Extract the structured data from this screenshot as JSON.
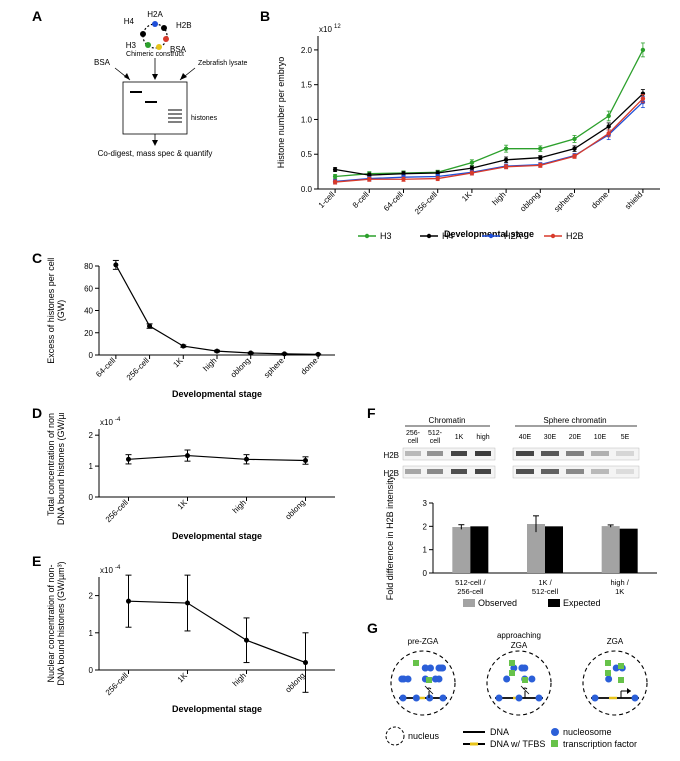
{
  "panelA": {
    "label": "A",
    "title_top_parts": [
      "H2A",
      "H4",
      "H2B",
      "H3",
      "BSA"
    ],
    "colors": {
      "H2A": "#1f4fd8",
      "H4": "#000000",
      "H2B": "#d83a2b",
      "H3": "#2ca02c",
      "BSA": "#e8c41a"
    },
    "top_label": "Chimeric construct",
    "arrow_labels": [
      "BSA",
      "Chimeric construct",
      "Zebrafish lysate"
    ],
    "bottom_label": "Co-digest, mass spec & quantify",
    "histones_label": "histones"
  },
  "panelB": {
    "label": "B",
    "ylabel": "Histone number per embryo",
    "yexp": "x10",
    "yexp_sup": "12",
    "xlabel": "Developmental stage",
    "xticks": [
      "1-cell",
      "8-cell",
      "64-cell",
      "256-cell",
      "1K",
      "high",
      "oblong",
      "sphere",
      "dome",
      "shield"
    ],
    "ylim": [
      0,
      2.2
    ],
    "yticks": [
      0,
      0.5,
      1.0,
      1.5,
      2.0
    ],
    "series": {
      "H3": {
        "color": "#2ca02c",
        "values": [
          0.18,
          0.22,
          0.23,
          0.24,
          0.38,
          0.58,
          0.58,
          0.72,
          1.05,
          2.0
        ],
        "err": [
          0.03,
          0.03,
          0.03,
          0.03,
          0.04,
          0.05,
          0.04,
          0.05,
          0.07,
          0.1
        ]
      },
      "H4": {
        "color": "#000000",
        "values": [
          0.28,
          0.2,
          0.22,
          0.23,
          0.3,
          0.42,
          0.45,
          0.58,
          0.9,
          1.37
        ],
        "err": [
          0.03,
          0.03,
          0.03,
          0.03,
          0.03,
          0.04,
          0.03,
          0.04,
          0.05,
          0.06
        ]
      },
      "H2A": {
        "color": "#1f4fd8",
        "values": [
          0.11,
          0.15,
          0.17,
          0.18,
          0.24,
          0.33,
          0.35,
          0.48,
          0.78,
          1.25
        ],
        "err": [
          0.03,
          0.03,
          0.03,
          0.03,
          0.03,
          0.03,
          0.03,
          0.03,
          0.07,
          0.08
        ]
      },
      "H2B": {
        "color": "#d83a2b",
        "values": [
          0.1,
          0.14,
          0.14,
          0.15,
          0.23,
          0.32,
          0.34,
          0.47,
          0.8,
          1.3
        ],
        "err": [
          0.03,
          0.03,
          0.03,
          0.03,
          0.03,
          0.03,
          0.03,
          0.03,
          0.05,
          0.06
        ]
      }
    },
    "legend": [
      "H3",
      "H4",
      "H2A",
      "H2B"
    ]
  },
  "panelC": {
    "label": "C",
    "ylabel": "Excess of histones per cell (GW)",
    "xlabel": "Developmental stage",
    "xticks": [
      "64-cell",
      "256-cell",
      "1K",
      "high",
      "oblong",
      "sphere",
      "dome"
    ],
    "ylim": [
      0,
      80
    ],
    "yticks": [
      0,
      20,
      40,
      60,
      80
    ],
    "values": [
      81,
      26,
      8,
      3.5,
      1.8,
      1.0,
      0.6
    ],
    "err": [
      4,
      2,
      1,
      0.8,
      0.6,
      0.5,
      0.4
    ],
    "color": "#000000"
  },
  "panelD": {
    "label": "D",
    "ylabel": "Total concentration of non-DNA bound histones (GW/µm³)",
    "yexp": "x10",
    "yexp_sup": "-4",
    "xlabel": "Developmental stage",
    "xticks": [
      "256-cell",
      "1K",
      "high",
      "oblong"
    ],
    "ylim": [
      0,
      2.2
    ],
    "yticks": [
      0,
      1,
      2
    ],
    "values": [
      1.22,
      1.34,
      1.22,
      1.18
    ],
    "err": [
      0.15,
      0.18,
      0.15,
      0.12
    ],
    "color": "#000000"
  },
  "panelE": {
    "label": "E",
    "ylabel": "Nuclear concentration of non-DNA bound histones (GW/µm³)",
    "yexp": "x10",
    "yexp_sup": "-4",
    "xlabel": "Developmental stage",
    "xticks": [
      "256-cell",
      "1K",
      "high",
      "oblong"
    ],
    "ylim": [
      0,
      2.5
    ],
    "yticks": [
      0,
      1,
      2
    ],
    "values": [
      1.85,
      1.8,
      0.8,
      0.2
    ],
    "err": [
      0.7,
      0.75,
      0.6,
      0.8
    ],
    "color": "#000000"
  },
  "panelF": {
    "label": "F",
    "chromatin_label": "Chromatin",
    "sphere_label": "Sphere chromatin",
    "lanes1": [
      "256-cell",
      "512-cell",
      "1K",
      "high"
    ],
    "lanes2": [
      "40E",
      "30E",
      "20E",
      "10E",
      "5E"
    ],
    "row_labels": [
      "H2B",
      "H2B"
    ],
    "bar_ylabel": "Fold difference in H2B intensity",
    "bar_ylim": [
      0,
      3
    ],
    "bar_yticks": [
      0,
      1,
      2,
      3
    ],
    "bar_groups": [
      "512-cell / 256-cell",
      "1K / 512-cell",
      "high / 1K"
    ],
    "bar_series": {
      "Observed": {
        "color": "#a3a3a3",
        "values": [
          1.97,
          2.1,
          2.01
        ],
        "err": [
          0.1,
          0.35,
          0.05
        ]
      },
      "Expected": {
        "color": "#000000",
        "values": [
          2.0,
          2.0,
          1.9
        ],
        "err": [
          0,
          0,
          0
        ]
      }
    },
    "bar_legend": [
      "Observed",
      "Expected"
    ]
  },
  "panelG": {
    "label": "G",
    "titles": [
      "pre-ZGA",
      "approaching ZGA",
      "ZGA"
    ],
    "nucleus_label": "nucleus",
    "dna_label": "DNA",
    "dna_tfbs_label": "DNA w/ TFBS",
    "nucleosome_label": "nucleosome",
    "tf_label": "transcription factor",
    "colors": {
      "nucleosome": "#2b5fd8",
      "tf": "#67c24a",
      "dna": "#000000",
      "tfbs": "#e8c41a"
    }
  }
}
